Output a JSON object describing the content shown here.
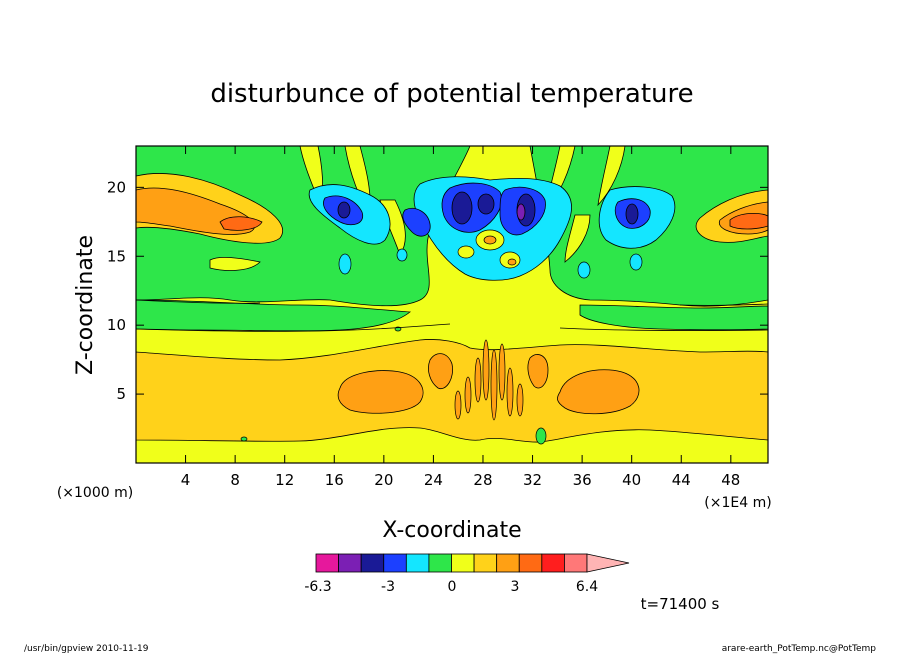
{
  "chart_data": {
    "type": "heatmap",
    "title": "disturbunce of potential temperature",
    "xlabel": "X-coordinate",
    "ylabel": "Z-coordinate",
    "x_unit_label": "(×1000 m)",
    "x_scale_label": "(×1E4 m)",
    "time_label": "t=71400 s",
    "xlim": [
      0,
      51
    ],
    "ylim": [
      0,
      23
    ],
    "x_ticks": [
      4,
      8,
      12,
      16,
      20,
      24,
      28,
      32,
      36,
      40,
      44,
      48
    ],
    "y_ticks": [
      5,
      10,
      15,
      20
    ],
    "colorbar": {
      "tick_labels": [
        "-6.3",
        "-3",
        "0",
        "3",
        "6.4"
      ],
      "colors": [
        "#e6189c",
        "#7b1fb4",
        "#1a1a96",
        "#1c40ff",
        "#14e6ff",
        "#2ee64a",
        "#f0ff1a",
        "#ffd21a",
        "#ffa014",
        "#ff6a14",
        "#ff1e1e",
        "#ff7878",
        "#ffb4b4"
      ]
    },
    "field_levels": [
      {
        "level": 0,
        "color": "#f0ff1a"
      },
      {
        "level": 1,
        "color": "#ffd21a"
      },
      {
        "level": 2,
        "color": "#ffa014"
      },
      {
        "level": 3,
        "color": "#ff6a14"
      },
      {
        "level": -1,
        "color": "#2ee64a"
      },
      {
        "level": -2,
        "color": "#14e6ff"
      },
      {
        "level": -3,
        "color": "#1c40ff"
      },
      {
        "level": -4,
        "color": "#1a1a96"
      },
      {
        "level": -5,
        "color": "#7b1fb4"
      }
    ]
  },
  "footer": {
    "left": "/usr/bin/gpview   2010-11-19",
    "right": "arare-earth_PotTemp.nc@PotTemp"
  }
}
